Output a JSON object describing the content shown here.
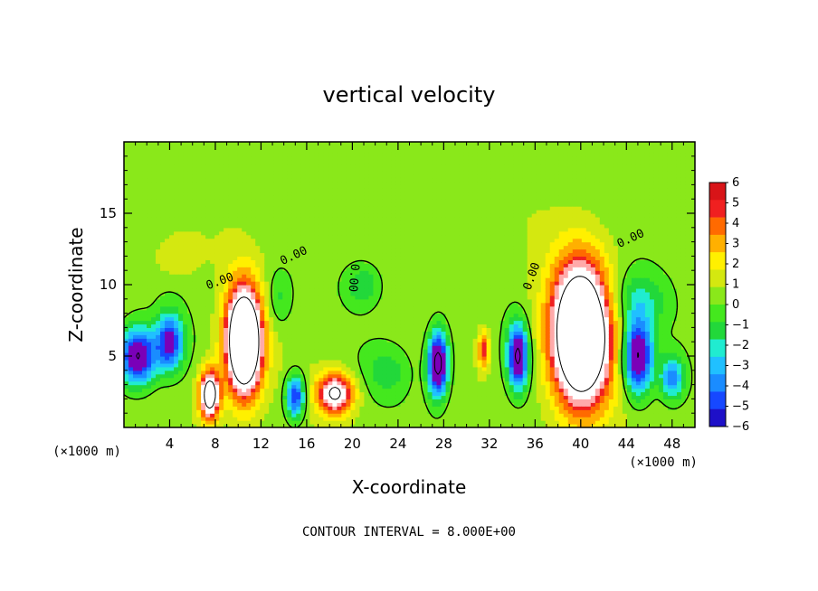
{
  "chart_data": {
    "type": "heatmap",
    "title": "vertical velocity",
    "xlabel": "X-coordinate",
    "ylabel": "Z-coordinate",
    "x_unit": "(×1000 m)",
    "xlim": [
      0,
      50
    ],
    "ylim": [
      0,
      20
    ],
    "xticks": [
      "4",
      "8",
      "12",
      "16",
      "20",
      "24",
      "28",
      "32",
      "36",
      "40",
      "44",
      "48"
    ],
    "xtick_values": [
      4,
      8,
      12,
      16,
      20,
      24,
      28,
      32,
      36,
      40,
      44,
      48
    ],
    "yticks": [
      "5",
      "10",
      "15"
    ],
    "ytick_values": [
      5,
      10,
      15
    ],
    "footer": "CONTOUR INTERVAL = 8.000E+00",
    "contour_label": "0.00",
    "colorbar": {
      "labels": [
        "6",
        "5",
        "4",
        "3",
        "2",
        "1",
        "0",
        "−1",
        "−2",
        "−3",
        "−4",
        "−5",
        "−6"
      ],
      "values": [
        6,
        5,
        4,
        3,
        2,
        1,
        0,
        -1,
        -2,
        -3,
        -4,
        -5,
        -6
      ]
    },
    "features": [
      {
        "x": 10.5,
        "z": 6.0,
        "sx": 1.6,
        "sz": 3.8,
        "amp": 14
      },
      {
        "x": 40.0,
        "z": 6.5,
        "sx": 2.6,
        "sz": 5.0,
        "amp": 14
      },
      {
        "x": 7.5,
        "z": 2.3,
        "sx": 0.9,
        "sz": 1.8,
        "amp": 10
      },
      {
        "x": 18.5,
        "z": 2.4,
        "sx": 1.6,
        "sz": 1.4,
        "amp": 8
      },
      {
        "x": 27.5,
        "z": 4.5,
        "sx": 0.9,
        "sz": 2.3,
        "amp": -10
      },
      {
        "x": 34.5,
        "z": 5.0,
        "sx": 0.9,
        "sz": 2.2,
        "amp": -9
      },
      {
        "x": 45.0,
        "z": 5.0,
        "sx": 1.3,
        "sz": 2.6,
        "amp": -9
      },
      {
        "x": 1.2,
        "z": 5.0,
        "sx": 1.6,
        "sz": 2.0,
        "amp": -9
      },
      {
        "x": 4.0,
        "z": 6.0,
        "sx": 1.2,
        "sz": 2.0,
        "amp": -7
      },
      {
        "x": 15.0,
        "z": 2.2,
        "sx": 0.8,
        "sz": 1.5,
        "amp": -7
      },
      {
        "x": 31.5,
        "z": 5.5,
        "sx": 0.5,
        "sz": 1.3,
        "amp": 5
      },
      {
        "x": 4.5,
        "z": 12.0,
        "sx": 2.0,
        "sz": 1.5,
        "amp": 1.5
      },
      {
        "x": 23.0,
        "z": 4.0,
        "sx": 2.0,
        "sz": 1.8,
        "amp": -2
      },
      {
        "x": 21.0,
        "z": 10.0,
        "sx": 1.5,
        "sz": 1.5,
        "amp": -2.5
      },
      {
        "x": 45.0,
        "z": 9.0,
        "sx": 2.5,
        "sz": 2.0,
        "amp": -2.5
      },
      {
        "x": 48.0,
        "z": 3.5,
        "sx": 1.0,
        "sz": 1.5,
        "amp": -5
      },
      {
        "x": 13.5,
        "z": 9.0,
        "sx": 1.2,
        "sz": 2.0,
        "amp": -2
      }
    ]
  },
  "colors": {
    "background": "#ffffff",
    "scale": [
      "#7a00b8",
      "#1e10c8",
      "#1648ff",
      "#1a8cff",
      "#20c0ff",
      "#20ecd0",
      "#22d83a",
      "#44e81e",
      "#8ae81a",
      "#d4e810",
      "#fff000",
      "#ffb000",
      "#ff6a00",
      "#f02020",
      "#d81418",
      "#ffaaaa",
      "#ffffff"
    ]
  }
}
